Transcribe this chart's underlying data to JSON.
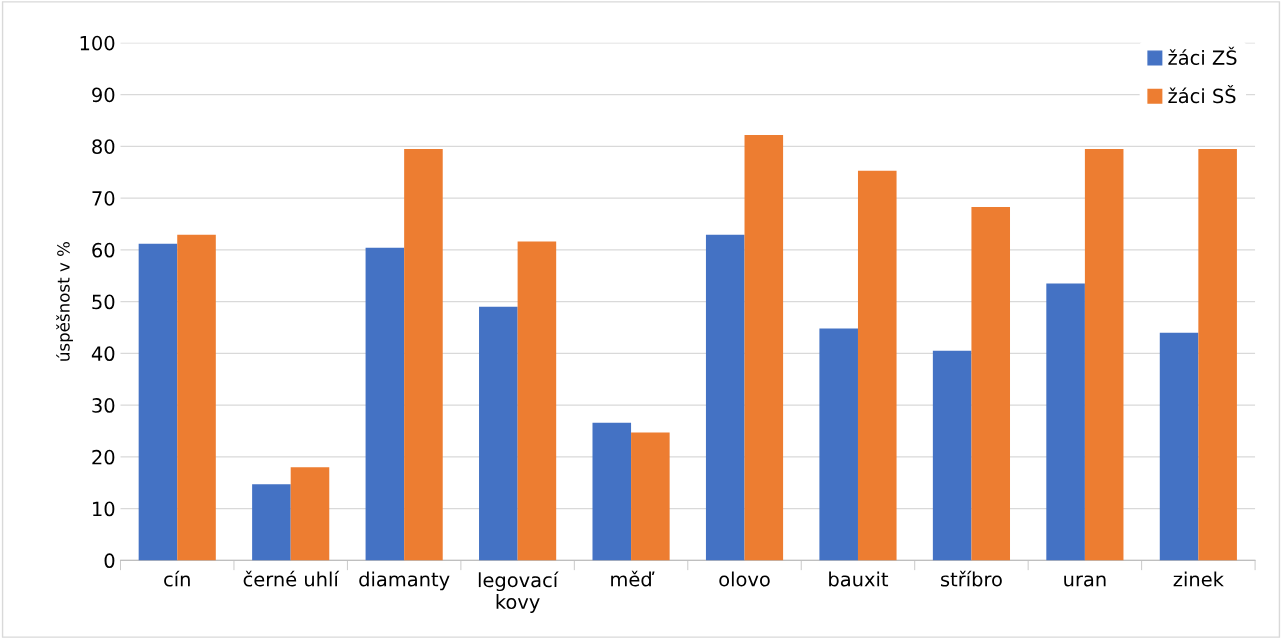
{
  "chart_data": {
    "type": "bar",
    "ylabel": "úspěšnost v %",
    "categories": [
      "cín",
      "černé uhlí",
      "diamanty",
      "legovací\nkovy",
      "měď",
      "olovo",
      "bauxit",
      "stříbro",
      "uran",
      "zinek"
    ],
    "series": [
      {
        "name": "žáci ZŠ",
        "color": "#4472c4",
        "values": [
          61.2,
          14.7,
          60.4,
          49.0,
          26.6,
          62.9,
          44.8,
          40.5,
          53.5,
          44.0
        ]
      },
      {
        "name": "žáci SŠ",
        "color": "#ed7d31",
        "values": [
          62.9,
          18.0,
          79.5,
          61.6,
          24.7,
          82.2,
          75.3,
          68.3,
          79.5,
          79.5
        ]
      }
    ],
    "ylim": [
      0,
      100
    ],
    "yticks": [
      0,
      10,
      20,
      30,
      40,
      50,
      60,
      70,
      80,
      90,
      100
    ],
    "grid": "y",
    "legend": "top right"
  }
}
